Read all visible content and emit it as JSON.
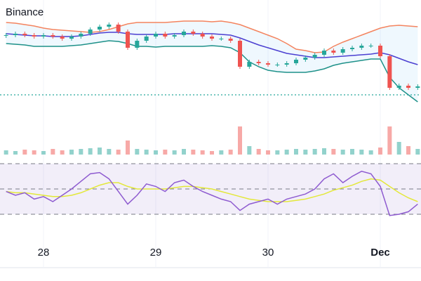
{
  "chart_data": [
    {
      "type": "candlestick",
      "title": "Binance",
      "x": [
        -8,
        -6,
        -4,
        -2,
        0,
        2,
        4,
        6,
        8,
        10,
        12,
        14,
        16,
        18,
        20,
        22,
        24,
        26,
        28,
        30,
        32,
        34,
        36,
        38,
        40,
        42,
        44,
        46,
        48,
        50,
        52,
        54,
        56,
        58,
        60,
        62,
        64,
        66,
        68,
        70,
        72,
        74,
        76,
        78,
        80
      ],
      "xlim": [
        -9.3,
        80.7
      ],
      "xticks": [
        {
          "value": 0,
          "label": "28"
        },
        {
          "value": 24,
          "label": "29"
        },
        {
          "value": 48,
          "label": "30"
        },
        {
          "value": 72,
          "label": "Dec"
        }
      ],
      "ylim": [
        0,
        150
      ],
      "up_color": "#26a69a",
      "down_color": "#ef5350",
      "open": [
        99,
        100,
        102,
        100,
        98,
        100,
        98,
        95,
        98,
        102,
        108,
        112,
        115,
        105,
        82,
        92,
        98,
        102,
        98,
        100,
        105,
        102,
        98,
        95,
        95,
        92,
        55,
        62,
        60,
        58,
        58,
        60,
        65,
        68,
        72,
        78,
        75,
        80,
        82,
        85,
        85,
        70,
        25,
        28,
        25
      ],
      "high": [
        103,
        105,
        105,
        103,
        103,
        103,
        101,
        101,
        105,
        111,
        115,
        118,
        118,
        108,
        95,
        101,
        105,
        105,
        103,
        108,
        108,
        105,
        101,
        98,
        98,
        95,
        65,
        65,
        63,
        61,
        63,
        68,
        71,
        75,
        81,
        81,
        83,
        85,
        88,
        88,
        88,
        73,
        31,
        31,
        30
      ],
      "low": [
        96,
        97,
        97,
        95,
        95,
        95,
        92,
        92,
        95,
        99,
        105,
        109,
        102,
        79,
        79,
        89,
        95,
        95,
        95,
        97,
        99,
        95,
        92,
        92,
        89,
        52,
        52,
        57,
        55,
        55,
        55,
        57,
        62,
        65,
        69,
        72,
        72,
        77,
        79,
        82,
        67,
        22,
        22,
        22,
        22
      ],
      "close": [
        100,
        102,
        100,
        98,
        100,
        98,
        95,
        98,
        102,
        108,
        112,
        115,
        105,
        82,
        92,
        98,
        102,
        98,
        100,
        105,
        102,
        98,
        95,
        95,
        92,
        55,
        62,
        60,
        58,
        58,
        60,
        65,
        68,
        72,
        78,
        75,
        80,
        82,
        85,
        85,
        70,
        25,
        28,
        25,
        27
      ],
      "lines": [
        {
          "color": "#f4845f",
          "values": [
            118,
            117,
            115,
            113,
            110,
            108,
            107,
            106,
            105,
            104,
            105,
            108,
            112,
            116,
            118,
            118,
            118,
            118,
            119,
            120,
            120,
            120,
            119,
            120,
            118,
            115,
            110,
            105,
            100,
            95,
            88,
            80,
            78,
            75,
            76,
            84,
            90,
            95,
            100,
            105,
            110,
            113,
            114,
            113,
            112
          ]
        },
        {
          "color": "#4b3fd1",
          "values": [
            102,
            101,
            100,
            99,
            99,
            98,
            98,
            98,
            99,
            101,
            103,
            104,
            104,
            102,
            101,
            101,
            101,
            101,
            102,
            102,
            102,
            102,
            102,
            101,
            100,
            96,
            91,
            86,
            82,
            78,
            74,
            72,
            70,
            68,
            68,
            69,
            70,
            71,
            72,
            73,
            75,
            72,
            67,
            62,
            58
          ]
        },
        {
          "color": "#1e9189",
          "values": [
            88,
            87,
            86,
            84,
            84,
            84,
            84,
            85,
            86,
            88,
            90,
            92,
            91,
            88,
            84,
            84,
            83,
            84,
            84,
            84,
            84,
            84,
            85,
            84,
            82,
            75,
            62,
            55,
            50,
            48,
            47,
            47,
            47,
            49,
            52,
            57,
            60,
            62,
            64,
            66,
            66,
            40,
            25,
            15,
            5
          ]
        }
      ],
      "band_fill": "rgba(33,150,243,0.07)",
      "price_line": 15,
      "price_line_color": "#26a69a"
    },
    {
      "type": "bar",
      "ylim": [
        0,
        50
      ],
      "up_color": "rgba(38,166,154,0.5)",
      "down_color": "rgba(239,83,80,0.5)",
      "values": [
        6,
        5,
        7,
        6,
        5,
        8,
        6,
        7,
        8,
        9,
        10,
        8,
        7,
        20,
        8,
        7,
        6,
        7,
        6,
        8,
        7,
        6,
        5,
        6,
        7,
        40,
        12,
        8,
        6,
        6,
        7,
        8,
        7,
        8,
        9,
        8,
        7,
        8,
        7,
        6,
        10,
        40,
        18,
        12,
        8
      ]
    },
    {
      "type": "line",
      "ylim": [
        20,
        80
      ],
      "levels": [
        70,
        50,
        30
      ],
      "fill": "rgba(126,87,194,0.1)",
      "series": [
        {
          "color": "#8e5bd0",
          "values": [
            48,
            45,
            47,
            42,
            44,
            40,
            45,
            50,
            56,
            62,
            63,
            58,
            48,
            38,
            45,
            54,
            52,
            48,
            55,
            57,
            52,
            48,
            45,
            42,
            40,
            33,
            38,
            40,
            42,
            38,
            42,
            44,
            46,
            50,
            58,
            62,
            55,
            60,
            64,
            62,
            52,
            29,
            30,
            32,
            38
          ]
        },
        {
          "color": "#e3e83a",
          "values": [
            48,
            47,
            47,
            46,
            45,
            44,
            44,
            45,
            47,
            50,
            53,
            55,
            55,
            52,
            50,
            50,
            50,
            50,
            51,
            52,
            52,
            51,
            50,
            48,
            46,
            44,
            42,
            41,
            40,
            40,
            40,
            41,
            42,
            44,
            46,
            49,
            51,
            53,
            56,
            58,
            57,
            52,
            47,
            43,
            40
          ]
        }
      ]
    }
  ]
}
